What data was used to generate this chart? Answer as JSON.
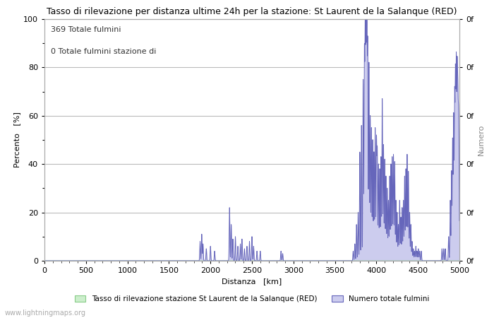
{
  "title": "Tasso di rilevazione per distanza ultime 24h per la stazione: St Laurent de la Salanque (RED)",
  "xlabel": "Distanza   [km]",
  "ylabel_left": "Percento   [%]",
  "ylabel_right": "Numero",
  "annotation_line1": "369 Totale fulmini",
  "annotation_line2": "0 Totale fulmini stazione di",
  "legend_green": "Tasso di rilevazione stazione St Laurent de la Salanque (RED)",
  "legend_blue": "Numero totale fulmini",
  "watermark": "www.lightningmaps.org",
  "xlim": [
    0,
    5000
  ],
  "ylim": [
    0,
    100
  ],
  "xticks": [
    0,
    500,
    1000,
    1500,
    2000,
    2500,
    3000,
    3500,
    4000,
    4500,
    5000
  ],
  "yticks_left": [
    0,
    20,
    40,
    60,
    80,
    100
  ],
  "yticks_minor": [
    10,
    30,
    50,
    70,
    90
  ],
  "title_fontsize": 9,
  "axis_fontsize": 8,
  "tick_fontsize": 8,
  "annot_fontsize": 8,
  "color_blue_line": "#6666bb",
  "color_blue_fill": "#ccccee",
  "color_green_fill": "#cceecc",
  "color_green_line": "#88cc88",
  "background": "#ffffff",
  "grid_color": "#bbbbbb",
  "right_tick_color": "#000000",
  "spine_color": "#aaaaaa"
}
